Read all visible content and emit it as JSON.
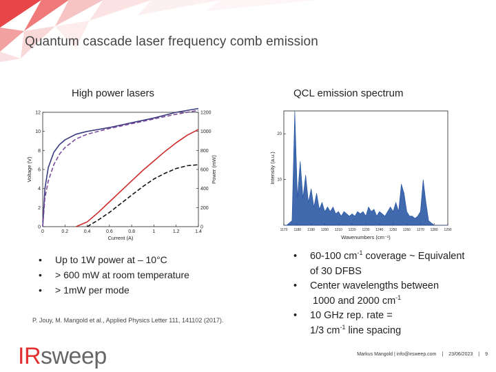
{
  "slide": {
    "title": "Quantum cascade laser frequency comb emission",
    "left_heading": "High power lasers",
    "right_heading": "QCL emission spectrum",
    "left_bullets": [
      "Up to 1W power at – 10°C",
      "> 600 mW at room temperature",
      "> 1mW per mode"
    ],
    "right_bullets": {
      "b1_pre": "60-100 cm",
      "b1_sup": "-1",
      "b1_post": " coverage ~ Equivalent",
      "b1_line2": "of 30 DFBS",
      "b2_line1": "Center wavelengths between",
      "b2_pre": "1000 and 2000 cm",
      "b2_sup": "-1",
      "b3_line1": "10 GHz rep. rate =",
      "b3_pre": "1/3 cm",
      "b3_sup": "-1",
      "b3_post": " line spacing"
    },
    "bullet_glyph": "•",
    "citation": "P. Jouy, M. Mangold et al., Applied Physics Letter 111, 141102 (2017).",
    "logo": {
      "ir": "IR",
      "rest": "sweep"
    },
    "footer": {
      "author": "Markus Mangold | info@irsweep.com",
      "sep": "|",
      "date": "23/06/2023",
      "page": "9"
    }
  },
  "chart_data": [
    {
      "type": "line",
      "xlabel": "Current (A)",
      "ylabel": "Voltage (V)",
      "y2label": "Power (mW)",
      "xlim": [
        0,
        1.4
      ],
      "ylim": [
        0,
        12
      ],
      "y2lim": [
        0,
        1200
      ],
      "x_ticks": [
        "0",
        "0.2",
        "0.4",
        "0.6",
        "0.8",
        "1",
        "1.2",
        "1.4"
      ],
      "y_ticks": [
        "0",
        "2",
        "4",
        "6",
        "8",
        "10",
        "12"
      ],
      "y2_ticks": [
        "0",
        "200",
        "400",
        "600",
        "800",
        "1000",
        "1200"
      ],
      "series": [
        {
          "axis": "left",
          "style": "solid",
          "color": "#3a3a80",
          "x": [
            0,
            0.02,
            0.05,
            0.1,
            0.15,
            0.2,
            0.3,
            0.4,
            0.6,
            0.8,
            1.0,
            1.2,
            1.4
          ],
          "y": [
            0,
            4.0,
            6.2,
            7.8,
            8.6,
            9.1,
            9.7,
            10.0,
            10.4,
            10.9,
            11.4,
            12.0,
            12.4
          ]
        },
        {
          "axis": "left",
          "style": "dashed",
          "color": "#7a4a9a",
          "x": [
            0,
            0.02,
            0.05,
            0.1,
            0.15,
            0.2,
            0.3,
            0.4,
            0.6,
            0.8,
            1.0,
            1.2,
            1.4
          ],
          "y": [
            0,
            3.0,
            4.8,
            6.5,
            7.6,
            8.3,
            9.2,
            9.7,
            10.3,
            10.8,
            11.3,
            11.8,
            12.2
          ]
        },
        {
          "axis": "right",
          "style": "solid",
          "color": "#cc2a2a",
          "x": [
            0.3,
            0.4,
            0.5,
            0.6,
            0.7,
            0.8,
            0.9,
            1.0,
            1.1,
            1.2,
            1.3,
            1.4
          ],
          "y": [
            0,
            50,
            150,
            260,
            370,
            480,
            590,
            690,
            790,
            880,
            960,
            1020
          ]
        },
        {
          "axis": "right",
          "style": "dashed",
          "color": "#111111",
          "x": [
            0.4,
            0.5,
            0.6,
            0.7,
            0.8,
            0.9,
            1.0,
            1.1,
            1.2,
            1.3,
            1.4
          ],
          "y": [
            0,
            70,
            150,
            240,
            330,
            420,
            500,
            560,
            610,
            640,
            650
          ]
        }
      ]
    },
    {
      "type": "area",
      "xlabel": "Wavenumbers (cm⁻¹)",
      "ylabel": "Intensity (a.u.)",
      "xlim": [
        1170,
        1290
      ],
      "ylim": [
        0,
        25
      ],
      "x_ticks": [
        "1170",
        "1180",
        "1190",
        "1200",
        "1210",
        "1220",
        "1230",
        "1240",
        "1250",
        "1260",
        "1270",
        "1280",
        "1290"
      ],
      "y_ticks": [
        "10",
        "20"
      ],
      "series": [
        {
          "color": "#1f4fa0",
          "x": [
            1170,
            1172,
            1174,
            1176,
            1178,
            1180,
            1182,
            1184,
            1186,
            1188,
            1190,
            1192,
            1194,
            1196,
            1198,
            1200,
            1202,
            1204,
            1206,
            1208,
            1210,
            1212,
            1214,
            1216,
            1218,
            1220,
            1222,
            1224,
            1226,
            1228,
            1230,
            1232,
            1234,
            1236,
            1238,
            1240,
            1242,
            1244,
            1246,
            1248,
            1250,
            1252,
            1254,
            1256,
            1258,
            1260,
            1262,
            1264,
            1266,
            1268,
            1270,
            1272,
            1274,
            1276,
            1278,
            1280,
            1282,
            1284,
            1286,
            1288,
            1290
          ],
          "y": [
            0,
            0,
            0.5,
            1,
            25,
            6,
            14,
            6,
            11,
            5,
            8,
            4,
            7,
            3.5,
            5,
            3,
            4,
            3,
            4,
            2.5,
            3,
            2,
            3,
            2.5,
            2,
            2.5,
            2,
            3,
            2.5,
            3,
            2,
            4,
            3,
            3.5,
            2,
            3,
            2.5,
            2,
            3,
            4,
            3,
            5,
            3,
            9,
            7,
            3,
            2,
            2,
            1.5,
            2,
            3,
            10,
            5,
            1,
            0.5,
            0,
            0,
            0,
            0,
            0,
            0
          ]
        }
      ]
    }
  ]
}
